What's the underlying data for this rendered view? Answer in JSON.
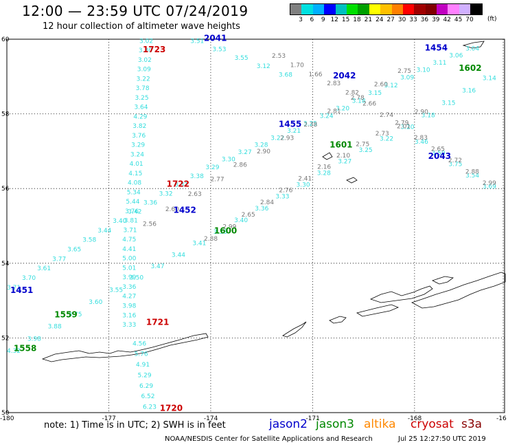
{
  "header": {
    "title": "12:00 — 23:59 UTC 07/24/2019",
    "subtitle": "12 hour collection of altimeter wave heights"
  },
  "legend": {
    "colors": [
      "#808080",
      "#00e0e0",
      "#00b0ff",
      "#0000ff",
      "#00c0c0",
      "#00e000",
      "#00a000",
      "#ffff00",
      "#ffc000",
      "#ff8000",
      "#ff0000",
      "#a00000",
      "#800000",
      "#c000c0",
      "#ff80ff",
      "#d0b0ff",
      "#000000"
    ],
    "labels": [
      "3",
      "6",
      "9",
      "12",
      "15",
      "18",
      "21",
      "24",
      "27",
      "30",
      "33",
      "36",
      "39",
      "42",
      "45",
      "70"
    ],
    "unit": "(ft)"
  },
  "axes": {
    "lat_labels": [
      "60",
      "58",
      "56",
      "54",
      "52",
      "50"
    ],
    "lon_labels": [
      "-180",
      "-177",
      "-174",
      "-171",
      "-168",
      "-16"
    ]
  },
  "colors": {
    "jason2": "#0000cc",
    "jason3": "#008800",
    "altika": "#ff8800",
    "cryosat": "#cc0000",
    "s3a": "#880000",
    "track_cyan": "#33dddd",
    "track_gray": "#777777"
  },
  "tracks": [
    {
      "name": "t1",
      "color": "cyan",
      "lonlat": [
        [
          -180,
          53.3
        ],
        [
          -176.5,
          55.3
        ],
        [
          -174,
          56.6
        ],
        [
          -171,
          57.8
        ],
        [
          -168,
          59.1
        ],
        [
          -166.5,
          59.7
        ]
      ],
      "values": [
        "3.71",
        "3.70",
        "3.61",
        "3.77",
        "3.65",
        "3.58",
        "3.44",
        "3.40",
        "3.42",
        "3.36",
        "3.32",
        "3.31",
        "3.38",
        "3.29",
        "3.30",
        "3.27",
        "3.28",
        "3.22",
        "3.21",
        "3.25",
        "3.24",
        "3.20",
        "3.18",
        "3.15",
        "3.12",
        "3.09",
        "3.10",
        "3.11",
        "3.06",
        "3.04"
      ]
    },
    {
      "name": "t2",
      "color": "cyan",
      "lonlat": [
        [
          -180,
          51.6
        ],
        [
          -176.5,
          53.5
        ],
        [
          -173.5,
          55.0
        ],
        [
          -171,
          56.3
        ],
        [
          -168,
          57.8
        ],
        [
          -166,
          58.9
        ]
      ],
      "values": [
        "4.32",
        "3.98",
        "3.88",
        "3.75",
        "3.60",
        "3.55",
        "3.50",
        "3.47",
        "3.44",
        "3.41",
        "3.38",
        "3.40",
        "3.36",
        "3.33",
        "3.30",
        "3.28",
        "3.27",
        "3.25",
        "3.22",
        "3.20",
        "3.18",
        "3.15",
        "3.16",
        "3.14"
      ]
    },
    {
      "name": "t3",
      "color": "cyan",
      "lonlat": [
        [
          -176.1,
          59.9
        ],
        [
          -176.35,
          57.0
        ],
        [
          -176.6,
          54.6
        ],
        [
          -176.6,
          52.3
        ]
      ],
      "values": [
        "3.02",
        "3.30",
        "3.02",
        "3.09",
        "3.22",
        "3.78",
        "3.25",
        "3.64",
        "4.29",
        "3.82",
        "3.76",
        "3.29",
        "3.24",
        "4.01",
        "4.15",
        "4.08",
        "5.34",
        "5.44",
        "3.76",
        "3.81",
        "3.71",
        "4.75",
        "4.41",
        "5.00",
        "5.01",
        "3.99",
        "3.36",
        "4.27",
        "3.98",
        "3.16",
        "3.33"
      ]
    },
    {
      "name": "t4",
      "color": "cyan",
      "lonlat": [
        [
          -176.3,
          51.8
        ],
        [
          -176.0,
          50.1
        ]
      ],
      "values": [
        "4.56",
        "5.76",
        "4.91",
        "5.29",
        "6.29",
        "6.52",
        "6.23"
      ]
    },
    {
      "name": "t5",
      "color": "cyan",
      "lonlat": [
        [
          -174.6,
          59.9
        ],
        [
          -172,
          59.0
        ]
      ],
      "values": [
        "3.51",
        "3.53",
        "3.55",
        "3.12",
        "3.68"
      ]
    },
    {
      "name": "t6",
      "color": "cyan",
      "lonlat": [
        [
          -168,
          57.2
        ],
        [
          -166,
          56.0
        ]
      ],
      "values": [
        "3.46",
        "3.50",
        "3.75",
        "3.54",
        "3.69"
      ]
    },
    {
      "name": "t7",
      "color": "gray",
      "lonlat": [
        [
          -172.2,
          59.5
        ],
        [
          -170,
          58.5
        ],
        [
          -168,
          57.3
        ],
        [
          -166,
          56.1
        ]
      ],
      "values": [
        "2.53",
        "1.70",
        "1.66",
        "2.83",
        "2.82",
        "2.66",
        "2.74",
        "2.01",
        "2.83",
        "2.65",
        "2.72",
        "2.88",
        "2.99"
      ]
    },
    {
      "name": "t8",
      "color": "gray",
      "lonlat": [
        [
          -176.0,
          55.0
        ],
        [
          -173.5,
          56.5
        ],
        [
          -171,
          57.8
        ],
        [
          -168.5,
          59.1
        ]
      ],
      "values": [
        "2.56",
        "2.60",
        "2.63",
        "2.77",
        "2.86",
        "2.90",
        "2.93",
        "2.38",
        "2.81",
        "2.78",
        "2.60",
        "2.75"
      ]
    },
    {
      "name": "t9",
      "color": "gray",
      "lonlat": [
        [
          -174.2,
          54.6
        ],
        [
          -172,
          55.9
        ],
        [
          -170,
          57.0
        ],
        [
          -168,
          58.0
        ]
      ],
      "values": [
        "2.88",
        "2.99",
        "2.65",
        "2.84",
        "2.76",
        "2.41",
        "2.16",
        "2.10",
        "2.75",
        "2.73",
        "2.79",
        "2.90"
      ]
    }
  ],
  "pass_labels": [
    {
      "text": "1723",
      "sat": "cryosat",
      "lon": -176.0,
      "lat": 59.65
    },
    {
      "text": "2041",
      "sat": "jason2",
      "lon": -174.2,
      "lat": 59.95
    },
    {
      "text": "2042",
      "sat": "jason2",
      "lon": -170.4,
      "lat": 58.95
    },
    {
      "text": "1454",
      "sat": "jason2",
      "lon": -167.7,
      "lat": 59.7
    },
    {
      "text": "1602",
      "sat": "jason3",
      "lon": -166.7,
      "lat": 59.15
    },
    {
      "text": "1455",
      "sat": "jason2",
      "lon": -172.0,
      "lat": 57.65
    },
    {
      "text": "1601",
      "sat": "jason3",
      "lon": -170.5,
      "lat": 57.1
    },
    {
      "text": "2043",
      "sat": "jason2",
      "lon": -167.6,
      "lat": 56.8
    },
    {
      "text": "1722",
      "sat": "cryosat",
      "lon": -175.3,
      "lat": 56.05
    },
    {
      "text": "1452",
      "sat": "jason2",
      "lon": -175.1,
      "lat": 55.35
    },
    {
      "text": "1600",
      "sat": "jason3",
      "lon": -173.9,
      "lat": 54.8
    },
    {
      "text": "1451",
      "sat": "jason2",
      "lon": -179.9,
      "lat": 53.2
    },
    {
      "text": "1559",
      "sat": "jason3",
      "lon": -178.6,
      "lat": 52.55
    },
    {
      "text": "1721",
      "sat": "cryosat",
      "lon": -175.9,
      "lat": 52.35
    },
    {
      "text": "1558",
      "sat": "jason3",
      "lon": -179.8,
      "lat": 51.65
    },
    {
      "text": "1720",
      "sat": "cryosat",
      "lon": -175.5,
      "lat": 50.05
    }
  ],
  "note": "note:  1) Time is in UTC;  2) SWH is in feet",
  "satellites": [
    {
      "name": "jason2",
      "color": "#0000cc"
    },
    {
      "name": "jason3",
      "color": "#008800"
    },
    {
      "name": "altika",
      "color": "#ff8800"
    },
    {
      "name": "cryosat",
      "color": "#cc0000"
    },
    {
      "name": "s3a",
      "color": "#880000"
    }
  ],
  "credit": "NOAA/NESDIS Center for Satellite Applications and Research",
  "timestamp": "Jul 25 12:27:50 UTC 2019"
}
